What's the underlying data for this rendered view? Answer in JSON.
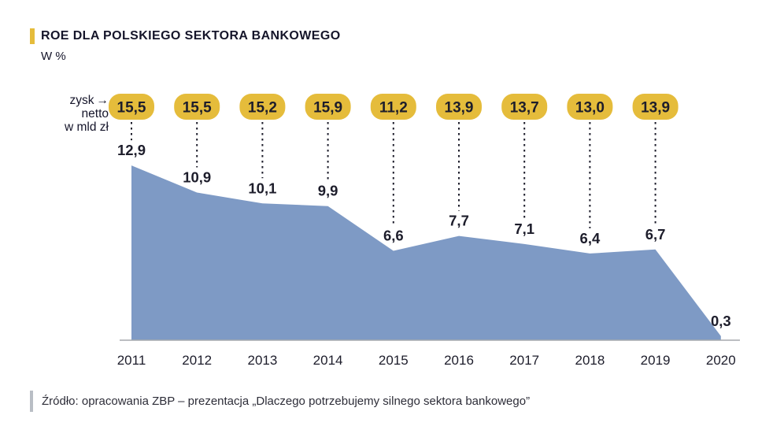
{
  "header": {
    "title": "ROE DLA POLSKIEGO SEKTORA BANKOWEGO",
    "subtitle": "W %"
  },
  "annotation": {
    "line1": "zysk",
    "line2": "netto",
    "line3": "w mld zł",
    "arrow": "→"
  },
  "chart_data": {
    "type": "area",
    "title": "ROE DLA POLSKIEGO SEKTORA BANKOWEGO",
    "subtitle": "W %",
    "categories": [
      "2011",
      "2012",
      "2013",
      "2014",
      "2015",
      "2016",
      "2017",
      "2018",
      "2019",
      "2020"
    ],
    "series": [
      {
        "name": "ROE sektora bankowego (W %)",
        "values": [
          12.9,
          10.9,
          10.1,
          9.9,
          6.6,
          7.7,
          7.1,
          6.4,
          6.7,
          0.3
        ],
        "labels": [
          "12,9",
          "10,9",
          "10,1",
          "9,9",
          "6,6",
          "7,7",
          "7,1",
          "6,4",
          "6,7",
          "0,3"
        ]
      },
      {
        "name": "zysk netto w mld zł",
        "values": [
          15.5,
          15.5,
          15.2,
          15.9,
          11.2,
          13.9,
          13.7,
          13.0,
          13.9,
          null
        ],
        "labels": [
          "15,5",
          "15,5",
          "15,2",
          "15,9",
          "11,2",
          "13,9",
          "13,7",
          "13,0",
          "13,9"
        ]
      }
    ],
    "ylim": [
      0,
      16
    ],
    "grid": false,
    "legend": "none",
    "colors": {
      "area": "#7E9AC5",
      "badge": "#E5BC3B",
      "text_dark": "#1D1D2B",
      "axis": "#A6A9AD"
    }
  },
  "footer": {
    "source": "Źródło: opracowania ZBP – prezentacja „Dlaczego potrzebujemy silnego sektora bankowego”"
  }
}
